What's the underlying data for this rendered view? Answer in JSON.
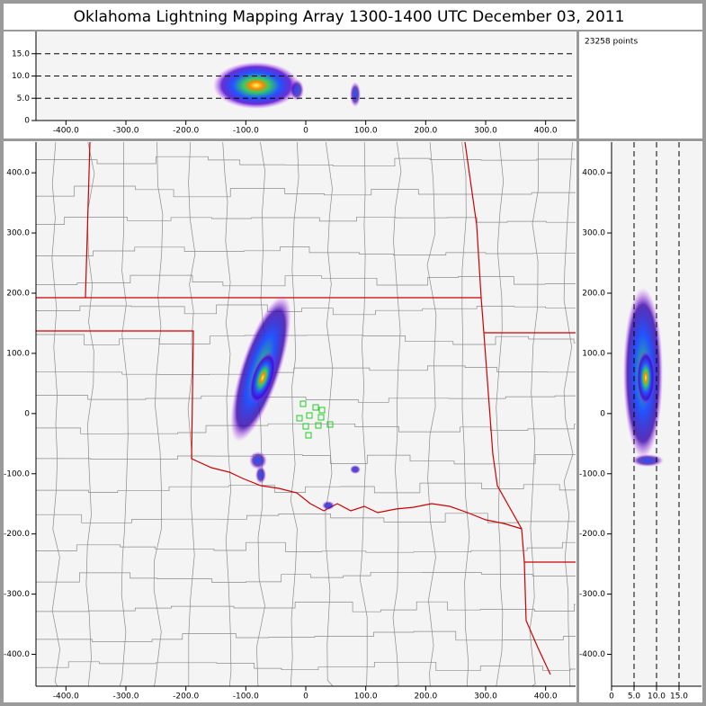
{
  "title": "Oklahoma Lightning Mapping Array   1300-1400 UTC  December 03, 2011",
  "points_label": "23258 points",
  "chart_data": [
    {
      "type": "scatter",
      "panel": "altitude-vs-east",
      "xlim": [
        -450,
        450
      ],
      "ylim": [
        0,
        20
      ],
      "xticks": [
        {
          "value": -400,
          "label": "-400.0"
        },
        {
          "value": -300,
          "label": "-300.0"
        },
        {
          "value": -200,
          "label": "-200.0"
        },
        {
          "value": -100,
          "label": "-100.0"
        },
        0,
        {
          "value": 100,
          "label": "100.0"
        },
        {
          "value": 200,
          "label": "200.0"
        },
        {
          "value": 300,
          "label": "300.0"
        },
        {
          "value": 400,
          "label": "400.0"
        }
      ],
      "yticks": [
        0,
        {
          "value": 5,
          "label": "5.0"
        },
        {
          "value": 10,
          "label": "10.0"
        },
        {
          "value": 15,
          "label": "15.0"
        }
      ],
      "grid": "y"
    },
    {
      "type": "scatter",
      "panel": "plan-view",
      "xlim": [
        -450,
        450
      ],
      "ylim": [
        -453,
        451
      ],
      "xticks": [
        {
          "value": -400,
          "label": "-400.0"
        },
        {
          "value": -300,
          "label": "-300.0"
        },
        {
          "value": -200,
          "label": "-200.0"
        },
        {
          "value": -100,
          "label": "-100.0"
        },
        0,
        {
          "value": 100,
          "label": "100.0"
        },
        {
          "value": 200,
          "label": "200.0"
        },
        {
          "value": 300,
          "label": "300.0"
        },
        {
          "value": 400,
          "label": "400.0"
        }
      ],
      "yticks": [
        {
          "value": -400,
          "label": "-400.0"
        },
        {
          "value": -300,
          "label": "-300.0"
        },
        {
          "value": -200,
          "label": "-200.0"
        },
        {
          "value": -100,
          "label": "-100.0"
        },
        0,
        {
          "value": 100,
          "label": "100.0"
        },
        {
          "value": 200,
          "label": "200.0"
        },
        {
          "value": 300,
          "label": "300.0"
        },
        {
          "value": 400,
          "label": "400.0"
        }
      ],
      "grid": "none"
    },
    {
      "type": "scatter",
      "panel": "north-vs-altitude",
      "xlim": [
        0,
        20
      ],
      "ylim": [
        -453,
        451
      ],
      "xticks": [
        0,
        {
          "value": 5,
          "label": "5.0"
        },
        {
          "value": 10,
          "label": "10.0"
        },
        {
          "value": 15,
          "label": "15.0"
        }
      ],
      "yticks": [
        {
          "value": -400,
          "label": "-400.0"
        },
        {
          "value": -300,
          "label": "-300.0"
        },
        {
          "value": -200,
          "label": "-200.0"
        },
        {
          "value": -100,
          "label": "-100.0"
        },
        0,
        {
          "value": 100,
          "label": "100.0"
        },
        {
          "value": 200,
          "label": "200.0"
        },
        {
          "value": 300,
          "label": "300.0"
        },
        {
          "value": 400,
          "label": "400.0"
        }
      ],
      "grid": "x"
    }
  ]
}
